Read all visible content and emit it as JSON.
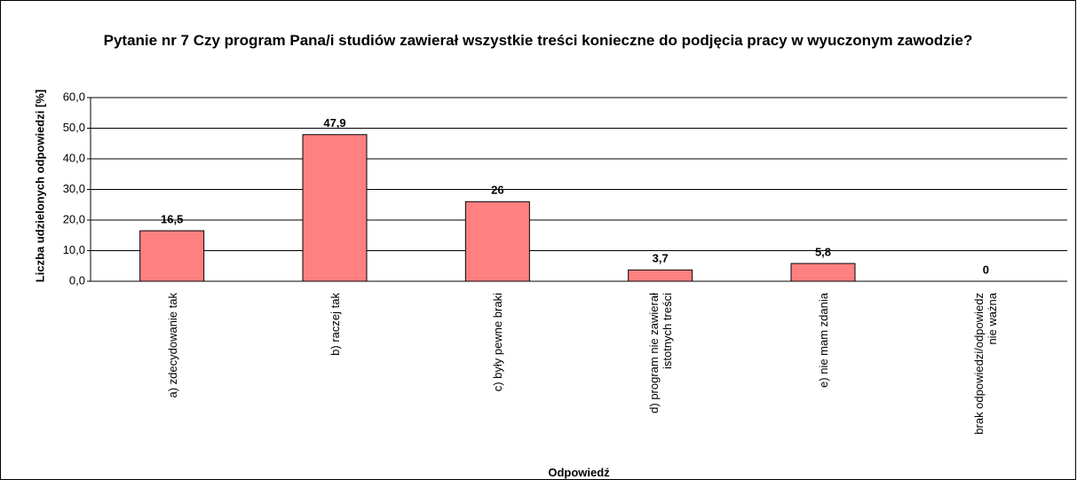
{
  "chart_data": {
    "type": "bar",
    "title": "Pytanie nr 7 Czy program Pana/i studiów zawierał wszystkie treści konieczne do podjęcia pracy w wyuczonym zawodzie?",
    "x_label": "Odpowiedź",
    "y_label": "Liczba udzielonych odpowiedzi [%]",
    "categories": [
      "a) zdecydowanie tak",
      "b) raczej tak",
      "c) były pewne braki",
      "d) program nie zawierał istotnych treści",
      "e) nie mam zdania",
      "brak odpowiedzi/odpowiedz nie ważna"
    ],
    "values": [
      16.5,
      47.9,
      26,
      3.7,
      5.8,
      0
    ],
    "value_labels": [
      "16,5",
      "47,9",
      "26",
      "3,7",
      "5,8",
      "0"
    ],
    "color": "#ff8080",
    "ylim": [
      0,
      60
    ],
    "yticks": [
      {
        "value": 0,
        "label": "0,0"
      },
      {
        "value": 10,
        "label": "10,0"
      },
      {
        "value": 20,
        "label": "20,0"
      },
      {
        "value": 30,
        "label": "30,0"
      },
      {
        "value": 40,
        "label": "40,0"
      },
      {
        "value": 50,
        "label": "50,0"
      },
      {
        "value": 60,
        "label": "60,0"
      }
    ],
    "grid": true
  }
}
